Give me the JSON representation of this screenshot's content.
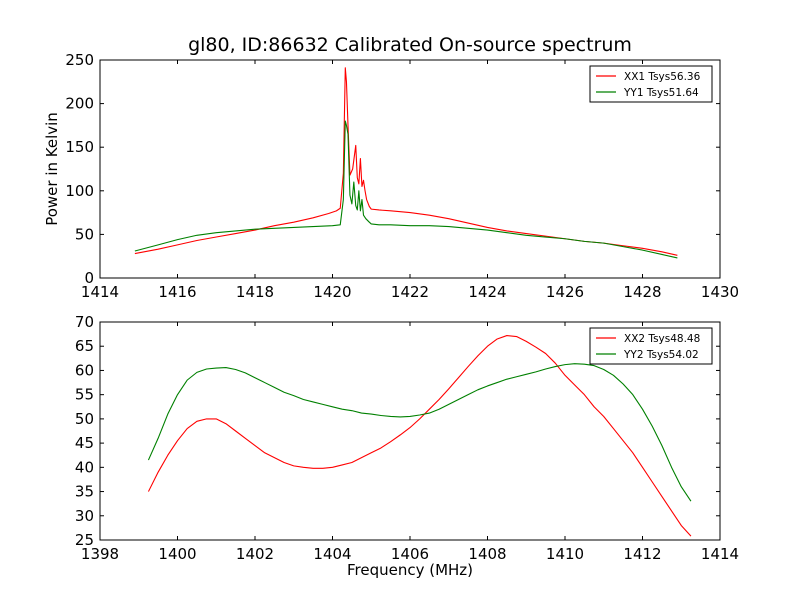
{
  "chart_data": [
    {
      "type": "line",
      "title": "gl80, ID:86632 Calibrated On-source spectrum",
      "ylabel": "Power in Kelvin",
      "xlabel": "",
      "xlim": [
        1414,
        1430
      ],
      "ylim": [
        0,
        250
      ],
      "xticks": [
        "1414",
        "1416",
        "1418",
        "1420",
        "1422",
        "1424",
        "1426",
        "1428",
        "1430"
      ],
      "yticks": [
        "0",
        "50",
        "100",
        "150",
        "200",
        "250"
      ],
      "legend_position": "top-right",
      "grid": false,
      "series": [
        {
          "name": "XX1 Tsys56.36",
          "color": "#ff0000",
          "x": [
            1414.9,
            1415.5,
            1416,
            1416.5,
            1417,
            1417.5,
            1418,
            1418.5,
            1419,
            1419.5,
            1419.9,
            1420.1,
            1420.2,
            1420.28,
            1420.33,
            1420.36,
            1420.4,
            1420.45,
            1420.52,
            1420.6,
            1420.64,
            1420.68,
            1420.72,
            1420.76,
            1420.8,
            1420.84,
            1420.88,
            1420.95,
            1421.0,
            1421.2,
            1421.5,
            1422,
            1422.5,
            1423,
            1423.5,
            1424,
            1424.5,
            1425,
            1425.5,
            1426,
            1426.5,
            1427,
            1427.5,
            1428,
            1428.5,
            1428.9
          ],
          "y": [
            28,
            33,
            38,
            43,
            47,
            51,
            55,
            60,
            64,
            69,
            74,
            77,
            80,
            120,
            241,
            225,
            175,
            118,
            125,
            152,
            115,
            108,
            137,
            105,
            112,
            100,
            90,
            82,
            79,
            78,
            77,
            75,
            72,
            68,
            63,
            58,
            54,
            51,
            48,
            45,
            42,
            40,
            37,
            34,
            30,
            26
          ]
        },
        {
          "name": "YY1 Tsys51.64",
          "color": "#008000",
          "x": [
            1414.9,
            1415.5,
            1416,
            1416.5,
            1417,
            1417.5,
            1418,
            1418.5,
            1419,
            1419.5,
            1420.0,
            1420.2,
            1420.28,
            1420.33,
            1420.36,
            1420.4,
            1420.45,
            1420.5,
            1420.55,
            1420.6,
            1420.64,
            1420.68,
            1420.72,
            1420.76,
            1420.8,
            1420.86,
            1420.95,
            1421.0,
            1421.2,
            1421.5,
            1422,
            1422.5,
            1423,
            1423.5,
            1424,
            1424.5,
            1425,
            1425.5,
            1426,
            1426.5,
            1427,
            1427.5,
            1428,
            1428.5,
            1428.9
          ],
          "y": [
            31,
            38,
            44,
            49,
            52,
            54,
            56,
            57,
            58,
            59,
            60,
            61,
            90,
            180,
            175,
            165,
            95,
            85,
            110,
            83,
            78,
            100,
            77,
            90,
            72,
            68,
            64,
            62,
            61,
            61,
            60,
            60,
            59,
            57,
            55,
            52,
            49,
            47,
            45,
            42,
            40,
            36,
            32,
            27,
            23
          ]
        }
      ]
    },
    {
      "type": "line",
      "title": "",
      "ylabel": "",
      "xlabel": "Frequency (MHz)",
      "xlim": [
        1398,
        1414
      ],
      "ylim": [
        25,
        70
      ],
      "xticks": [
        "1398",
        "1400",
        "1402",
        "1404",
        "1406",
        "1408",
        "1410",
        "1412",
        "1414"
      ],
      "yticks": [
        "25",
        "30",
        "35",
        "40",
        "45",
        "50",
        "55",
        "60",
        "65",
        "70"
      ],
      "legend_position": "top-right",
      "grid": false,
      "series": [
        {
          "name": "XX2 Tsys48.48",
          "color": "#ff0000",
          "x": [
            1399.25,
            1399.5,
            1399.75,
            1400,
            1400.25,
            1400.5,
            1400.75,
            1401,
            1401.25,
            1401.5,
            1401.75,
            1402,
            1402.25,
            1402.5,
            1402.75,
            1403,
            1403.25,
            1403.5,
            1403.75,
            1404,
            1404.25,
            1404.5,
            1404.75,
            1405,
            1405.25,
            1405.5,
            1405.75,
            1406,
            1406.25,
            1406.5,
            1406.75,
            1407,
            1407.25,
            1407.5,
            1407.75,
            1408,
            1408.25,
            1408.5,
            1408.75,
            1409,
            1409.25,
            1409.5,
            1409.75,
            1410,
            1410.25,
            1410.5,
            1410.75,
            1411,
            1411.25,
            1411.5,
            1411.75,
            1412,
            1412.25,
            1412.5,
            1412.75,
            1413,
            1413.25
          ],
          "y": [
            35,
            39,
            42.5,
            45.5,
            48,
            49.5,
            50,
            50,
            49,
            47.5,
            46,
            44.5,
            43,
            42,
            41,
            40.3,
            40,
            39.8,
            39.8,
            40,
            40.5,
            41,
            42,
            43,
            44,
            45.3,
            46.7,
            48.2,
            50,
            52,
            54,
            56.2,
            58.5,
            60.8,
            63,
            65,
            66.5,
            67.2,
            67,
            66,
            64.8,
            63.5,
            61.5,
            59,
            57,
            55,
            52.5,
            50.5,
            48,
            45.5,
            43,
            40,
            37,
            34,
            31,
            28,
            25.8
          ]
        },
        {
          "name": "YY2 Tsys54.02",
          "color": "#008000",
          "x": [
            1399.25,
            1399.5,
            1399.75,
            1400,
            1400.25,
            1400.5,
            1400.75,
            1401,
            1401.25,
            1401.5,
            1401.75,
            1402,
            1402.25,
            1402.5,
            1402.75,
            1403,
            1403.25,
            1403.5,
            1403.75,
            1404,
            1404.25,
            1404.5,
            1404.75,
            1405,
            1405.25,
            1405.5,
            1405.75,
            1406,
            1406.25,
            1406.5,
            1406.75,
            1407,
            1407.25,
            1407.5,
            1407.75,
            1408,
            1408.25,
            1408.5,
            1408.75,
            1409,
            1409.25,
            1409.5,
            1409.75,
            1410,
            1410.25,
            1410.5,
            1410.75,
            1411,
            1411.25,
            1411.5,
            1411.75,
            1412,
            1412.25,
            1412.5,
            1412.75,
            1413,
            1413.25
          ],
          "y": [
            41.5,
            46,
            51,
            55,
            58,
            59.6,
            60.3,
            60.5,
            60.6,
            60.2,
            59.5,
            58.5,
            57.5,
            56.5,
            55.5,
            54.8,
            54,
            53.5,
            53,
            52.5,
            52,
            51.7,
            51.2,
            51,
            50.7,
            50.5,
            50.4,
            50.5,
            50.8,
            51.2,
            52,
            53,
            54,
            55,
            56,
            56.8,
            57.5,
            58.2,
            58.7,
            59.2,
            59.7,
            60.3,
            60.8,
            61.2,
            61.4,
            61.3,
            61,
            60.2,
            59,
            57.2,
            55,
            52,
            48.5,
            44.5,
            40,
            36,
            33
          ]
        }
      ]
    }
  ]
}
